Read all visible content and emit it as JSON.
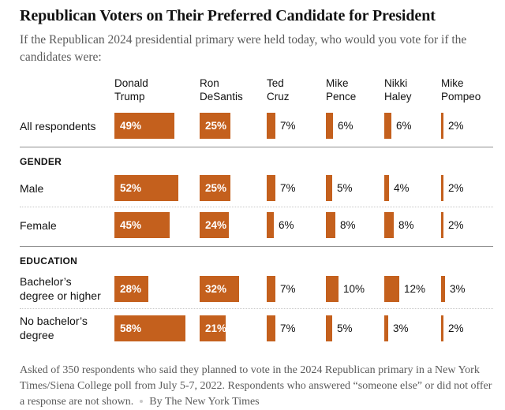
{
  "chart_data": {
    "type": "bar",
    "orientation": "horizontal",
    "title": "Republican Voters on Their Preferred Candidate for President",
    "subtitle": "If the Republican 2024 presidential primary were held today, who would you vote for if the candidates were:",
    "unit": "%",
    "value_range": [
      0,
      58
    ],
    "bar_color": "#C4601D",
    "inside_label_color": "#FFFFFF",
    "outside_label_color": "#121212",
    "legend_position": "none",
    "grid": false,
    "categories": [
      "Donald Trump",
      "Ron DeSantis",
      "Ted Cruz",
      "Mike Pence",
      "Nikki Haley",
      "Mike Pompeo"
    ],
    "groups": [
      {
        "section": "",
        "rows": [
          {
            "label": "All respondents",
            "values": [
              49,
              25,
              7,
              6,
              6,
              2
            ]
          }
        ]
      },
      {
        "section": "GENDER",
        "rows": [
          {
            "label": "Male",
            "values": [
              52,
              25,
              7,
              5,
              4,
              2
            ]
          },
          {
            "label": "Female",
            "values": [
              45,
              24,
              6,
              8,
              8,
              2
            ]
          }
        ]
      },
      {
        "section": "EDUCATION",
        "rows": [
          {
            "label": "Bachelor’s degree or higher",
            "values": [
              28,
              32,
              7,
              10,
              12,
              3
            ]
          },
          {
            "label": "No bachelor’s degree",
            "values": [
              58,
              21,
              7,
              5,
              3,
              2
            ]
          }
        ]
      }
    ]
  },
  "footer": {
    "note": "Asked of 350 respondents who said they planned to vote in the 2024 Republican primary in a New York Times/Siena College poll from July 5-7, 2022. Respondents who answered “someone else” or did not offer a response are not shown.",
    "byline": "By The New York Times"
  }
}
